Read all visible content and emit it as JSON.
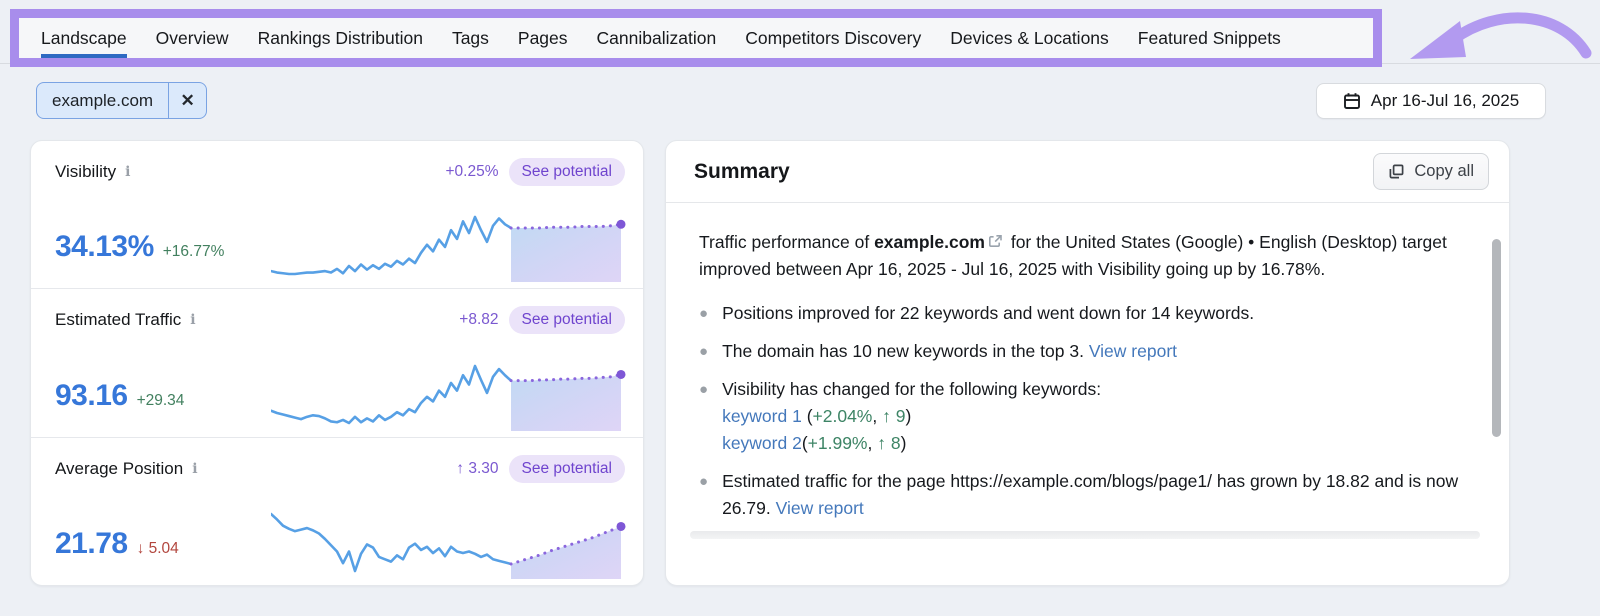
{
  "nav": {
    "tabs": [
      {
        "label": "Landscape",
        "active": true
      },
      {
        "label": "Overview"
      },
      {
        "label": "Rankings Distribution"
      },
      {
        "label": "Tags"
      },
      {
        "label": "Pages"
      },
      {
        "label": "Cannibalization"
      },
      {
        "label": "Competitors Discovery"
      },
      {
        "label": "Devices & Locations"
      },
      {
        "label": "Featured Snippets"
      }
    ]
  },
  "filters": {
    "domain_chip": {
      "label": "example.com",
      "remove_glyph": "✕"
    },
    "date_range": "Apr 16-Jul 16, 2025"
  },
  "metrics": [
    {
      "title": "Visibility",
      "value": "34.13%",
      "delta": "+16.77%",
      "delta_direction": "up",
      "potential_delta": "+0.25%",
      "see_potential": "See potential"
    },
    {
      "title": "Estimated Traffic",
      "value": "93.16",
      "delta": "+29.34",
      "delta_direction": "up",
      "potential_delta": "+8.82",
      "see_potential": "See potential"
    },
    {
      "title": "Average Position",
      "value": "21.78",
      "delta": "↓ 5.04",
      "delta_direction": "down",
      "potential_delta": "↑ 3.30",
      "see_potential": "See potential"
    }
  ],
  "summary": {
    "title": "Summary",
    "copy_all": "Copy all",
    "intro": {
      "pre": "Traffic performance of ",
      "domain": "example.com",
      "post": " for the United States (Google) • English (Desktop) target improved between Apr 16, 2025 - Jul 16, 2025 with Visibility going up by 16.78%."
    },
    "bullets": [
      {
        "text": "Positions improved for 22 keywords and went down for 14 keywords."
      },
      {
        "text": "The domain has 10 new keywords in the top 3. ",
        "link": "View report"
      },
      {
        "text": "Visibility has changed for the following keywords:",
        "keywords": [
          {
            "name": "keyword 1",
            "open": " (",
            "change": "+2.04%",
            "sep": ", ",
            "rank": "↑ 9",
            "close": ")"
          },
          {
            "name": "keyword 2",
            "open": "(",
            "change": "+1.99%",
            "sep": ", ",
            "rank": "↑ 8",
            "close": ")"
          }
        ]
      },
      {
        "text": "Estimated traffic for the page https://example.com/blogs/page1/ has grown by 18.82 and is now 26.79. ",
        "link": "View report"
      }
    ]
  },
  "colors": {
    "annotation_purple": "#a88dec",
    "active_tab_underline": "#2e6ac2",
    "value_blue": "#3677d9",
    "positive_green": "#42805f",
    "negative_red": "#b2463e",
    "accent_purple": "#7a58d0",
    "badge_bg": "#ebe3f9",
    "link_blue": "#4478bb",
    "sparkline_blue": "#57a0e5",
    "forecast_purple": "#8a66dd"
  },
  "chart_data": [
    {
      "type": "line",
      "name": "visibility-trend-sparkline",
      "note": "unlabeled sparkline, values normalized 0-100",
      "solid": [
        20,
        18,
        17,
        16,
        16,
        17,
        18,
        18,
        19,
        20,
        18,
        23,
        17,
        27,
        20,
        29,
        22,
        28,
        23,
        30,
        26,
        34,
        29,
        37,
        31,
        45,
        56,
        47,
        63,
        53,
        76,
        64,
        88,
        72,
        94,
        76,
        60,
        82,
        92,
        84,
        79
      ],
      "forecast": [
        79,
        79,
        79,
        79,
        80,
        80,
        80,
        81,
        81,
        81,
        82,
        84
      ],
      "line_color": "#57a0e5",
      "forecast_color": "#8a66dd"
    },
    {
      "type": "line",
      "name": "estimated-traffic-trend-sparkline",
      "note": "unlabeled sparkline, values normalized 0-100",
      "solid": [
        34,
        31,
        29,
        27,
        25,
        23,
        26,
        28,
        27,
        24,
        20,
        19,
        22,
        18,
        26,
        19,
        24,
        20,
        28,
        22,
        26,
        32,
        28,
        36,
        32,
        44,
        52,
        46,
        60,
        52,
        70,
        60,
        80,
        68,
        92,
        74,
        57,
        78,
        88,
        80,
        73
      ],
      "forecast": [
        73,
        73,
        73,
        74,
        74,
        75,
        75,
        76,
        76,
        77,
        78,
        81
      ],
      "line_color": "#57a0e5",
      "forecast_color": "#8a66dd"
    },
    {
      "type": "line",
      "name": "average-position-trend-sparkline",
      "note": "unlabeled sparkline, values normalized 0-100",
      "solid": [
        95,
        88,
        80,
        76,
        73,
        75,
        77,
        74,
        70,
        63,
        55,
        47,
        32,
        47,
        22,
        44,
        56,
        52,
        40,
        37,
        34,
        42,
        37,
        52,
        57,
        49,
        53,
        45,
        51,
        41,
        53,
        47,
        45,
        47,
        44,
        40,
        43,
        37,
        35,
        33,
        31
      ],
      "forecast": [
        31,
        35,
        39,
        43,
        48,
        52,
        56,
        60,
        64,
        69,
        74,
        79
      ],
      "line_color": "#57a0e5",
      "forecast_color": "#8a66dd"
    }
  ]
}
